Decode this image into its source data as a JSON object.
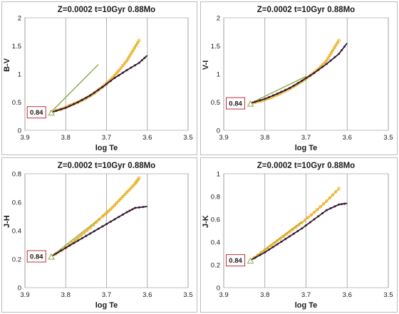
{
  "chart_data": [
    {
      "type": "line",
      "title": "Z=0.0002  t=10Gyr  0.88Mo",
      "xlabel": "log Te",
      "ylabel": "B-V",
      "xlim": [
        3.9,
        3.5
      ],
      "ylim": [
        0,
        2
      ],
      "xticks": [
        "3.9",
        "3.8",
        "3.7",
        "3.6",
        "3.5"
      ],
      "yticks": [
        "0",
        "0.5",
        "1",
        "1.5",
        "2"
      ],
      "annotation": "0.84",
      "colors": {
        "dark": "#1a1a3a",
        "red": "#c0304a",
        "gold": "#e8b020",
        "green": "#8aa84a"
      },
      "series": [
        {
          "x": [
            3.835,
            3.8,
            3.77,
            3.74,
            3.71,
            3.68,
            3.65,
            3.62,
            3.6
          ],
          "y": [
            0.32,
            0.4,
            0.5,
            0.62,
            0.77,
            0.93,
            1.07,
            1.2,
            1.33
          ]
        },
        {
          "x": [
            3.835,
            3.8,
            3.77,
            3.74,
            3.71,
            3.68,
            3.65,
            3.62,
            3.6
          ],
          "y": [
            0.32,
            0.4,
            0.5,
            0.62,
            0.77,
            0.93,
            1.07,
            1.2,
            1.33
          ]
        },
        {
          "x": [
            3.835,
            3.81,
            3.79,
            3.77,
            3.75,
            3.73,
            3.71,
            3.69,
            3.67,
            3.65,
            3.635,
            3.62
          ],
          "y": [
            0.33,
            0.38,
            0.44,
            0.5,
            0.57,
            0.66,
            0.77,
            0.9,
            1.06,
            1.24,
            1.42,
            1.6
          ]
        },
        {
          "x": [
            3.835,
            3.72
          ],
          "y": [
            0.33,
            1.17
          ]
        }
      ]
    },
    {
      "type": "line",
      "title": "Z=0.0002  t=10Gyr  0.88Mo",
      "xlabel": "log Te",
      "ylabel": "V-I",
      "xlim": [
        3.9,
        3.5
      ],
      "ylim": [
        0,
        2
      ],
      "xticks": [
        "3.9",
        "3.8",
        "3.7",
        "3.6",
        "3.5"
      ],
      "yticks": [
        "0",
        "0.5",
        "1",
        "1.5",
        "2"
      ],
      "annotation": "0.84",
      "colors": {
        "dark": "#1a1a3a",
        "red": "#c0304a",
        "gold": "#e8b020",
        "green": "#8aa84a"
      },
      "series": [
        {
          "x": [
            3.835,
            3.8,
            3.77,
            3.74,
            3.71,
            3.68,
            3.65,
            3.62,
            3.6
          ],
          "y": [
            0.48,
            0.56,
            0.65,
            0.75,
            0.88,
            1.02,
            1.18,
            1.36,
            1.55
          ]
        },
        {
          "x": [
            3.835,
            3.8,
            3.77,
            3.74,
            3.71,
            3.68,
            3.65,
            3.62,
            3.6
          ],
          "y": [
            0.48,
            0.56,
            0.65,
            0.75,
            0.88,
            1.02,
            1.18,
            1.36,
            1.55
          ]
        },
        {
          "x": [
            3.835,
            3.81,
            3.79,
            3.77,
            3.75,
            3.73,
            3.71,
            3.69,
            3.67,
            3.65,
            3.635,
            3.62
          ],
          "y": [
            0.48,
            0.52,
            0.57,
            0.63,
            0.7,
            0.78,
            0.87,
            0.97,
            1.09,
            1.24,
            1.42,
            1.6
          ]
        },
        {
          "x": [
            3.835,
            3.7
          ],
          "y": [
            0.48,
            0.96
          ]
        }
      ]
    },
    {
      "type": "line",
      "title": "Z=0.0002  t=10Gyr  0.88Mo",
      "xlabel": "log Te",
      "ylabel": "J-H",
      "xlim": [
        3.9,
        3.5
      ],
      "ylim": [
        0,
        0.8
      ],
      "xticks": [
        "3.9",
        "3.8",
        "3.7",
        "3.6",
        "3.5"
      ],
      "yticks": [
        "0",
        "0.2",
        "0.4",
        "0.6",
        "0.8"
      ],
      "annotation": "0.84",
      "colors": {
        "dark": "#1a1a3a",
        "red": "#c0304a",
        "gold": "#e8b020",
        "green": "#8aa84a"
      },
      "series": [
        {
          "x": [
            3.835,
            3.8,
            3.77,
            3.74,
            3.71,
            3.68,
            3.65,
            3.63,
            3.6
          ],
          "y": [
            0.22,
            0.28,
            0.33,
            0.38,
            0.43,
            0.48,
            0.53,
            0.56,
            0.57
          ]
        },
        {
          "x": [
            3.835,
            3.8,
            3.77,
            3.74,
            3.71,
            3.68,
            3.65,
            3.63,
            3.6
          ],
          "y": [
            0.22,
            0.28,
            0.33,
            0.38,
            0.43,
            0.48,
            0.53,
            0.56,
            0.57
          ]
        },
        {
          "x": [
            3.835,
            3.8,
            3.77,
            3.74,
            3.71,
            3.69,
            3.67,
            3.65,
            3.63,
            3.62
          ],
          "y": [
            0.22,
            0.28,
            0.35,
            0.42,
            0.5,
            0.55,
            0.61,
            0.67,
            0.73,
            0.77
          ]
        },
        {
          "x": [
            3.835,
            3.71
          ],
          "y": [
            0.22,
            0.5
          ]
        }
      ]
    },
    {
      "type": "line",
      "title": "Z=0.0002  t=10Gyr  0.88Mo",
      "xlabel": "log Te",
      "ylabel": "J-K",
      "xlim": [
        3.9,
        3.5
      ],
      "ylim": [
        0,
        1
      ],
      "xticks": [
        "3.9",
        "3.8",
        "3.7",
        "3.6",
        "3.5"
      ],
      "yticks": [
        "0",
        "0.2",
        "0.4",
        "0.6",
        "0.8",
        "1"
      ],
      "annotation": "0.84",
      "colors": {
        "dark": "#1a1a3a",
        "red": "#c0304a",
        "gold": "#e8b020",
        "green": "#8aa84a"
      },
      "series": [
        {
          "x": [
            3.835,
            3.8,
            3.77,
            3.74,
            3.71,
            3.68,
            3.65,
            3.62,
            3.6
          ],
          "y": [
            0.24,
            0.31,
            0.38,
            0.45,
            0.52,
            0.6,
            0.68,
            0.73,
            0.74
          ]
        },
        {
          "x": [
            3.835,
            3.8,
            3.77,
            3.74,
            3.71,
            3.68,
            3.65,
            3.62,
            3.6
          ],
          "y": [
            0.24,
            0.31,
            0.38,
            0.45,
            0.52,
            0.6,
            0.68,
            0.73,
            0.74
          ]
        },
        {
          "x": [
            3.835,
            3.8,
            3.77,
            3.74,
            3.71,
            3.68,
            3.65,
            3.62
          ],
          "y": [
            0.24,
            0.33,
            0.41,
            0.49,
            0.57,
            0.66,
            0.76,
            0.87
          ]
        },
        {
          "x": [
            3.835,
            3.71
          ],
          "y": [
            0.24,
            0.58
          ]
        }
      ]
    }
  ]
}
